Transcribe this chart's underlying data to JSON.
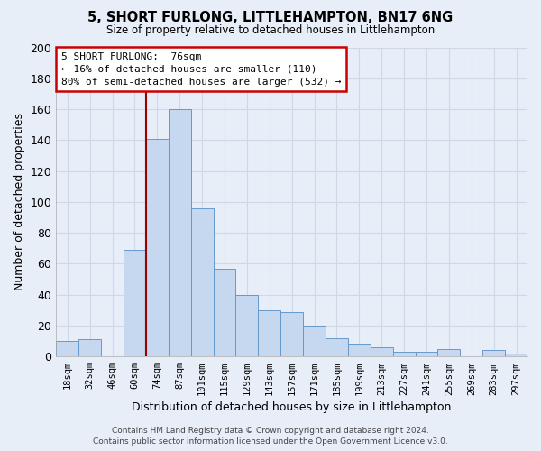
{
  "title": "5, SHORT FURLONG, LITTLEHAMPTON, BN17 6NG",
  "subtitle": "Size of property relative to detached houses in Littlehampton",
  "xlabel": "Distribution of detached houses by size in Littlehampton",
  "ylabel": "Number of detached properties",
  "footer_line1": "Contains HM Land Registry data © Crown copyright and database right 2024.",
  "footer_line2": "Contains public sector information licensed under the Open Government Licence v3.0.",
  "categories": [
    "18sqm",
    "32sqm",
    "46sqm",
    "60sqm",
    "74sqm",
    "87sqm",
    "101sqm",
    "115sqm",
    "129sqm",
    "143sqm",
    "157sqm",
    "171sqm",
    "185sqm",
    "199sqm",
    "213sqm",
    "227sqm",
    "241sqm",
    "255sqm",
    "269sqm",
    "283sqm",
    "297sqm"
  ],
  "values": [
    10,
    11,
    0,
    69,
    141,
    160,
    96,
    57,
    40,
    30,
    29,
    20,
    12,
    8,
    6,
    3,
    3,
    5,
    0,
    4,
    2
  ],
  "bar_color": "#c5d8f0",
  "bar_edge_color": "#6699cc",
  "background_color": "#e8eef8",
  "grid_color": "#d0d8e8",
  "annotation_text_line1": "5 SHORT FURLONG:  76sqm",
  "annotation_text_line2": "← 16% of detached houses are smaller (110)",
  "annotation_text_line3": "80% of semi-detached houses are larger (532) →",
  "annotation_box_facecolor": "#ffffff",
  "annotation_box_edgecolor": "#cc0000",
  "red_line_x": 4.0,
  "ylim": [
    0,
    200
  ],
  "yticks": [
    0,
    20,
    40,
    60,
    80,
    100,
    120,
    140,
    160,
    180,
    200
  ]
}
